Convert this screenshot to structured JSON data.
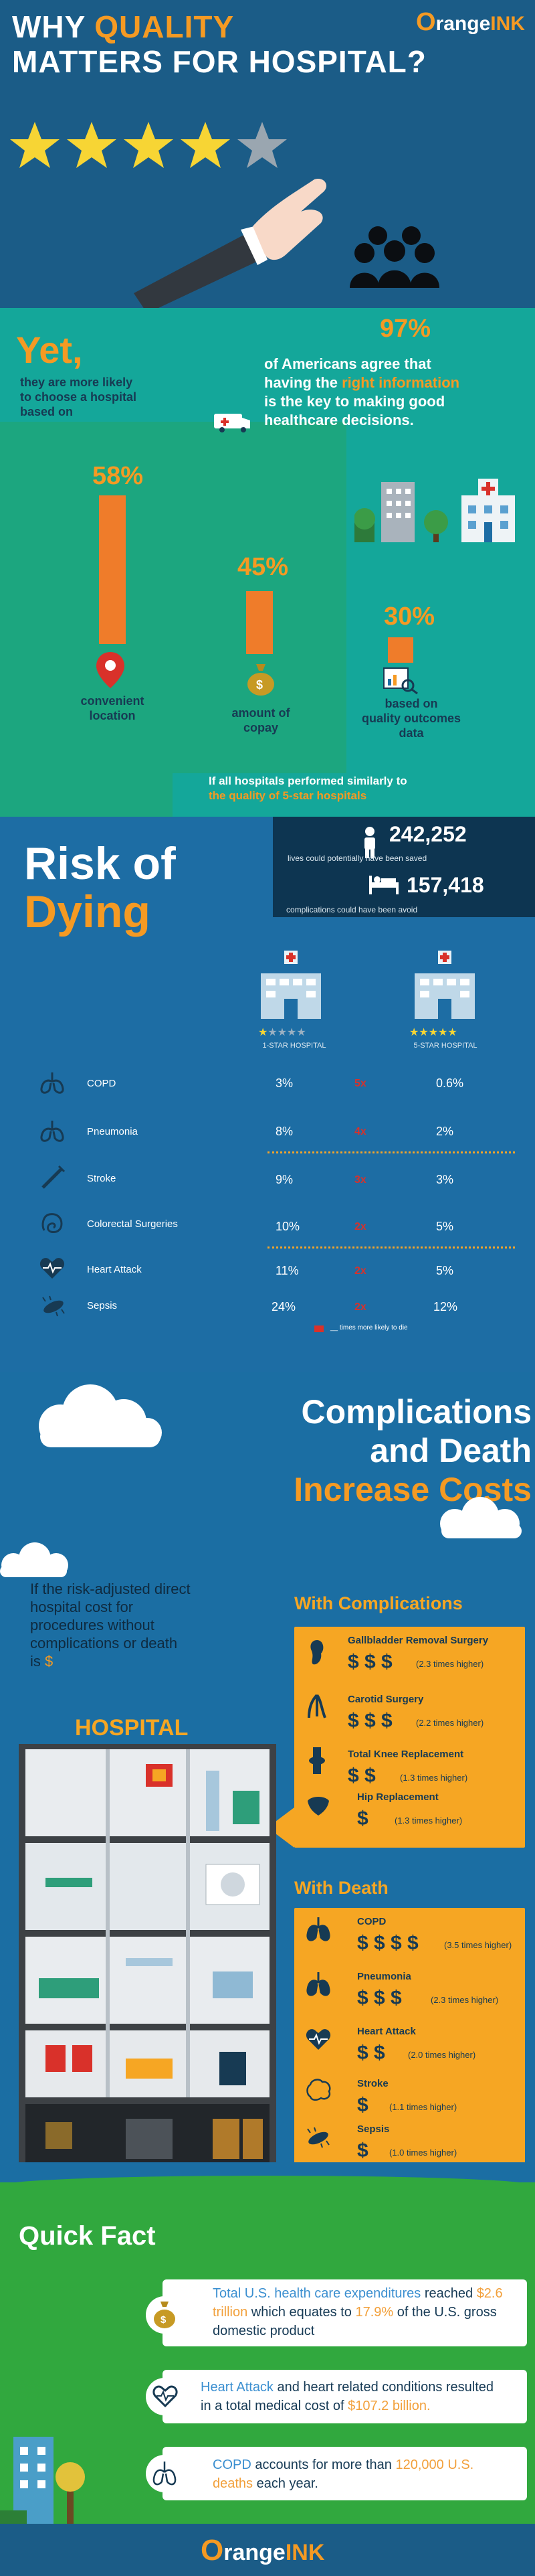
{
  "header": {
    "title_part1": "WHY ",
    "title_quality": "QUALITY",
    "title_line2": "MATTERS FOR HOSPITAL?",
    "logo_main": "range",
    "logo_o": "O",
    "logo_ink": "INK",
    "stars": 5
  },
  "stat_97": {
    "value": "97%",
    "text1": "of Americans agree that",
    "text2_pre": "having the ",
    "text2_highlight": "right information",
    "text3": "is the key to making good",
    "text4": "healthcare decisions."
  },
  "yet": {
    "word": "Yet,",
    "line1": "they are more likely",
    "line2": "to choose a hospital",
    "line3": "based on"
  },
  "factors": [
    {
      "pct": "58%",
      "value": 58,
      "label1": "convenient",
      "label2": "location"
    },
    {
      "pct": "45%",
      "value": 45,
      "label1": "amount of",
      "label2": "copay"
    },
    {
      "pct": "30%",
      "value": 30,
      "label1": "based on",
      "label2": "quality outcomes data"
    }
  ],
  "similar": {
    "line1": "If all hospitals performed similarly to",
    "line2": "the quality of 5-star hospitals"
  },
  "saved": {
    "value": "242,252",
    "label": "lives could potentially have been saved"
  },
  "avoided": {
    "value": "157,418",
    "label": "complications could have been avoid"
  },
  "risk": {
    "word1": "Risk of",
    "word2": "Dying",
    "one_star": "1-STAR HOSPITAL",
    "five_star": "5-STAR HOSPITAL",
    "legend": "times more likely to die",
    "rows": [
      {
        "name": "COPD",
        "one": "3%",
        "mult": "5x",
        "five": "0.6%"
      },
      {
        "name": "Pneumonia",
        "one": "8%",
        "mult": "4x",
        "five": "2%"
      },
      {
        "name": "Stroke",
        "one": "9%",
        "mult": "3x",
        "five": "3%"
      },
      {
        "name": "Colorectal Surgeries",
        "one": "10%",
        "mult": "2x",
        "five": "5%"
      },
      {
        "name": "Heart Attack",
        "one": "11%",
        "mult": "2x",
        "five": "5%"
      },
      {
        "name": "Sepsis",
        "one": "24%",
        "mult": "2x",
        "five": "12%"
      }
    ]
  },
  "costs": {
    "line1": "Complications",
    "line2": "and Death",
    "line3": "Increase Costs"
  },
  "base": {
    "l1": "If the risk-adjusted direct",
    "l2": "hospital cost for",
    "l3": "procedures without",
    "l4": "complications or death",
    "l5": "is",
    "dollar": "$"
  },
  "hospital_label": "HOSPITAL",
  "with_complications": {
    "title": "With Complications",
    "items": [
      {
        "name": "Gallbladder Removal Surgery",
        "dollars": "$ $ $",
        "note": "(2.3 times higher)"
      },
      {
        "name": "Carotid Surgery",
        "dollars": "$ $ $",
        "note": "(2.2 times higher)"
      },
      {
        "name": "Total Knee Replacement",
        "dollars": "$ $",
        "note": "(1.3 times higher)"
      },
      {
        "name": "Hip Replacement",
        "dollars": "$",
        "note": "(1.3 times higher)"
      }
    ]
  },
  "with_death": {
    "title": "With Death",
    "items": [
      {
        "name": "COPD",
        "dollars": "$ $ $ $",
        "note": "(3.5 times higher)"
      },
      {
        "name": "Pneumonia",
        "dollars": "$ $ $",
        "note": "(2.3 times higher)"
      },
      {
        "name": "Heart Attack",
        "dollars": "$ $",
        "note": "(2.0 times higher)"
      },
      {
        "name": "Stroke",
        "dollars": "$",
        "note": "(1.1 times higher)"
      },
      {
        "name": "Sepsis",
        "dollars": "$",
        "note": "(1.0 times higher)"
      }
    ]
  },
  "quick": {
    "title": "Quick Fact",
    "f1a": "Total U.S. health care expenditures",
    "f1b": " reached ",
    "f1c": "$2.6",
    "f1d": "trillion",
    "f1e": " which equates to ",
    "f1f": "17.9%",
    "f1g": " of the U.S. gross",
    "f1h": "domestic product",
    "f2a": "Heart Attack",
    "f2b": " and heart related conditions resulted",
    "f2c": "in a total medical cost of ",
    "f2d": "$107.2 billion.",
    "f3a": "COPD",
    "f3b": " accounts for more than ",
    "f3c": "120,000 U.S.",
    "f3d": "deaths",
    "f3e": " each year."
  },
  "footer": {
    "logo_o": "O",
    "logo_main": "range",
    "logo_ink": "INK"
  },
  "colors": {
    "orange": "#f59a23",
    "teal": "#14a79a",
    "blue": "#1b6ea3",
    "navy": "#173a53",
    "red": "#d9312a"
  }
}
